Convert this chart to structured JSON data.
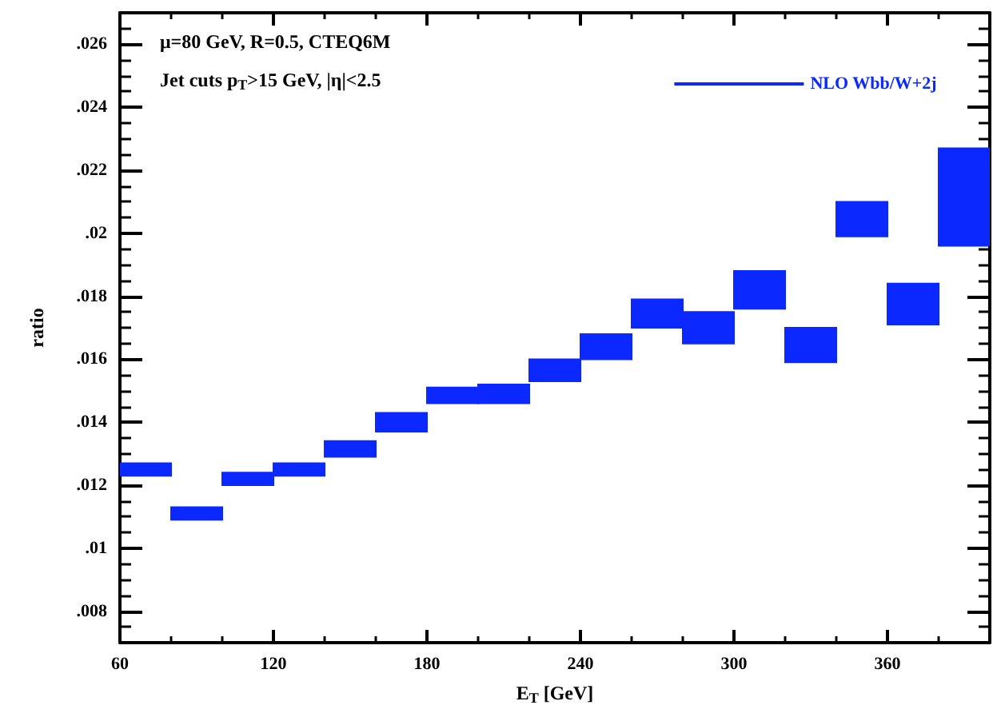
{
  "chart_data": {
    "type": "bar",
    "xlabel": "E$_{T}$ [GeV]",
    "ylabel": "ratio",
    "annotations": [
      "μ=80 GeV, R=0.5, CTEQ6M",
      "Jet cuts p$_{T}$>15 GeV, |η|<2.5"
    ],
    "x": [
      70,
      90,
      110,
      130,
      150,
      170,
      190,
      210,
      230,
      250,
      270,
      290,
      310,
      330,
      350,
      370,
      390
    ],
    "series": [
      {
        "name": "NLO Wbb/W+2j",
        "color": "#0a28ff",
        "base": [
          0.0123,
          0.0109,
          0.012,
          0.0123,
          0.0129,
          0.0137,
          0.0146,
          0.0146,
          0.0153,
          0.016,
          0.017,
          0.0165,
          0.0176,
          0.0159,
          0.0199,
          0.0171,
          0.0196
        ],
        "values": [
          0.0004,
          0.0004,
          0.0004,
          0.0004,
          0.0005,
          0.0006,
          0.0005,
          0.0006,
          0.0007,
          0.0008,
          0.0009,
          0.001,
          0.0012,
          0.0011,
          0.0011,
          0.0013,
          0.0031
        ]
      }
    ],
    "xlim": [
      60,
      400
    ],
    "xticks": [
      60,
      120,
      180,
      240,
      300,
      360
    ],
    "ylim": [
      0.007,
      0.027
    ],
    "yticks": [
      {
        "value": 0.008,
        "label": ".008"
      },
      {
        "value": 0.01,
        "label": ".01"
      },
      {
        "value": 0.012,
        "label": ".012"
      },
      {
        "value": 0.014,
        "label": ".014"
      },
      {
        "value": 0.016,
        "label": ".016"
      },
      {
        "value": 0.018,
        "label": ".018"
      },
      {
        "value": 0.02,
        "label": ".02"
      },
      {
        "value": 0.022,
        "label": ".022"
      },
      {
        "value": 0.024,
        "label": ".024"
      },
      {
        "value": 0.026,
        "label": ".026"
      }
    ],
    "legend": "top right",
    "grid": false
  }
}
